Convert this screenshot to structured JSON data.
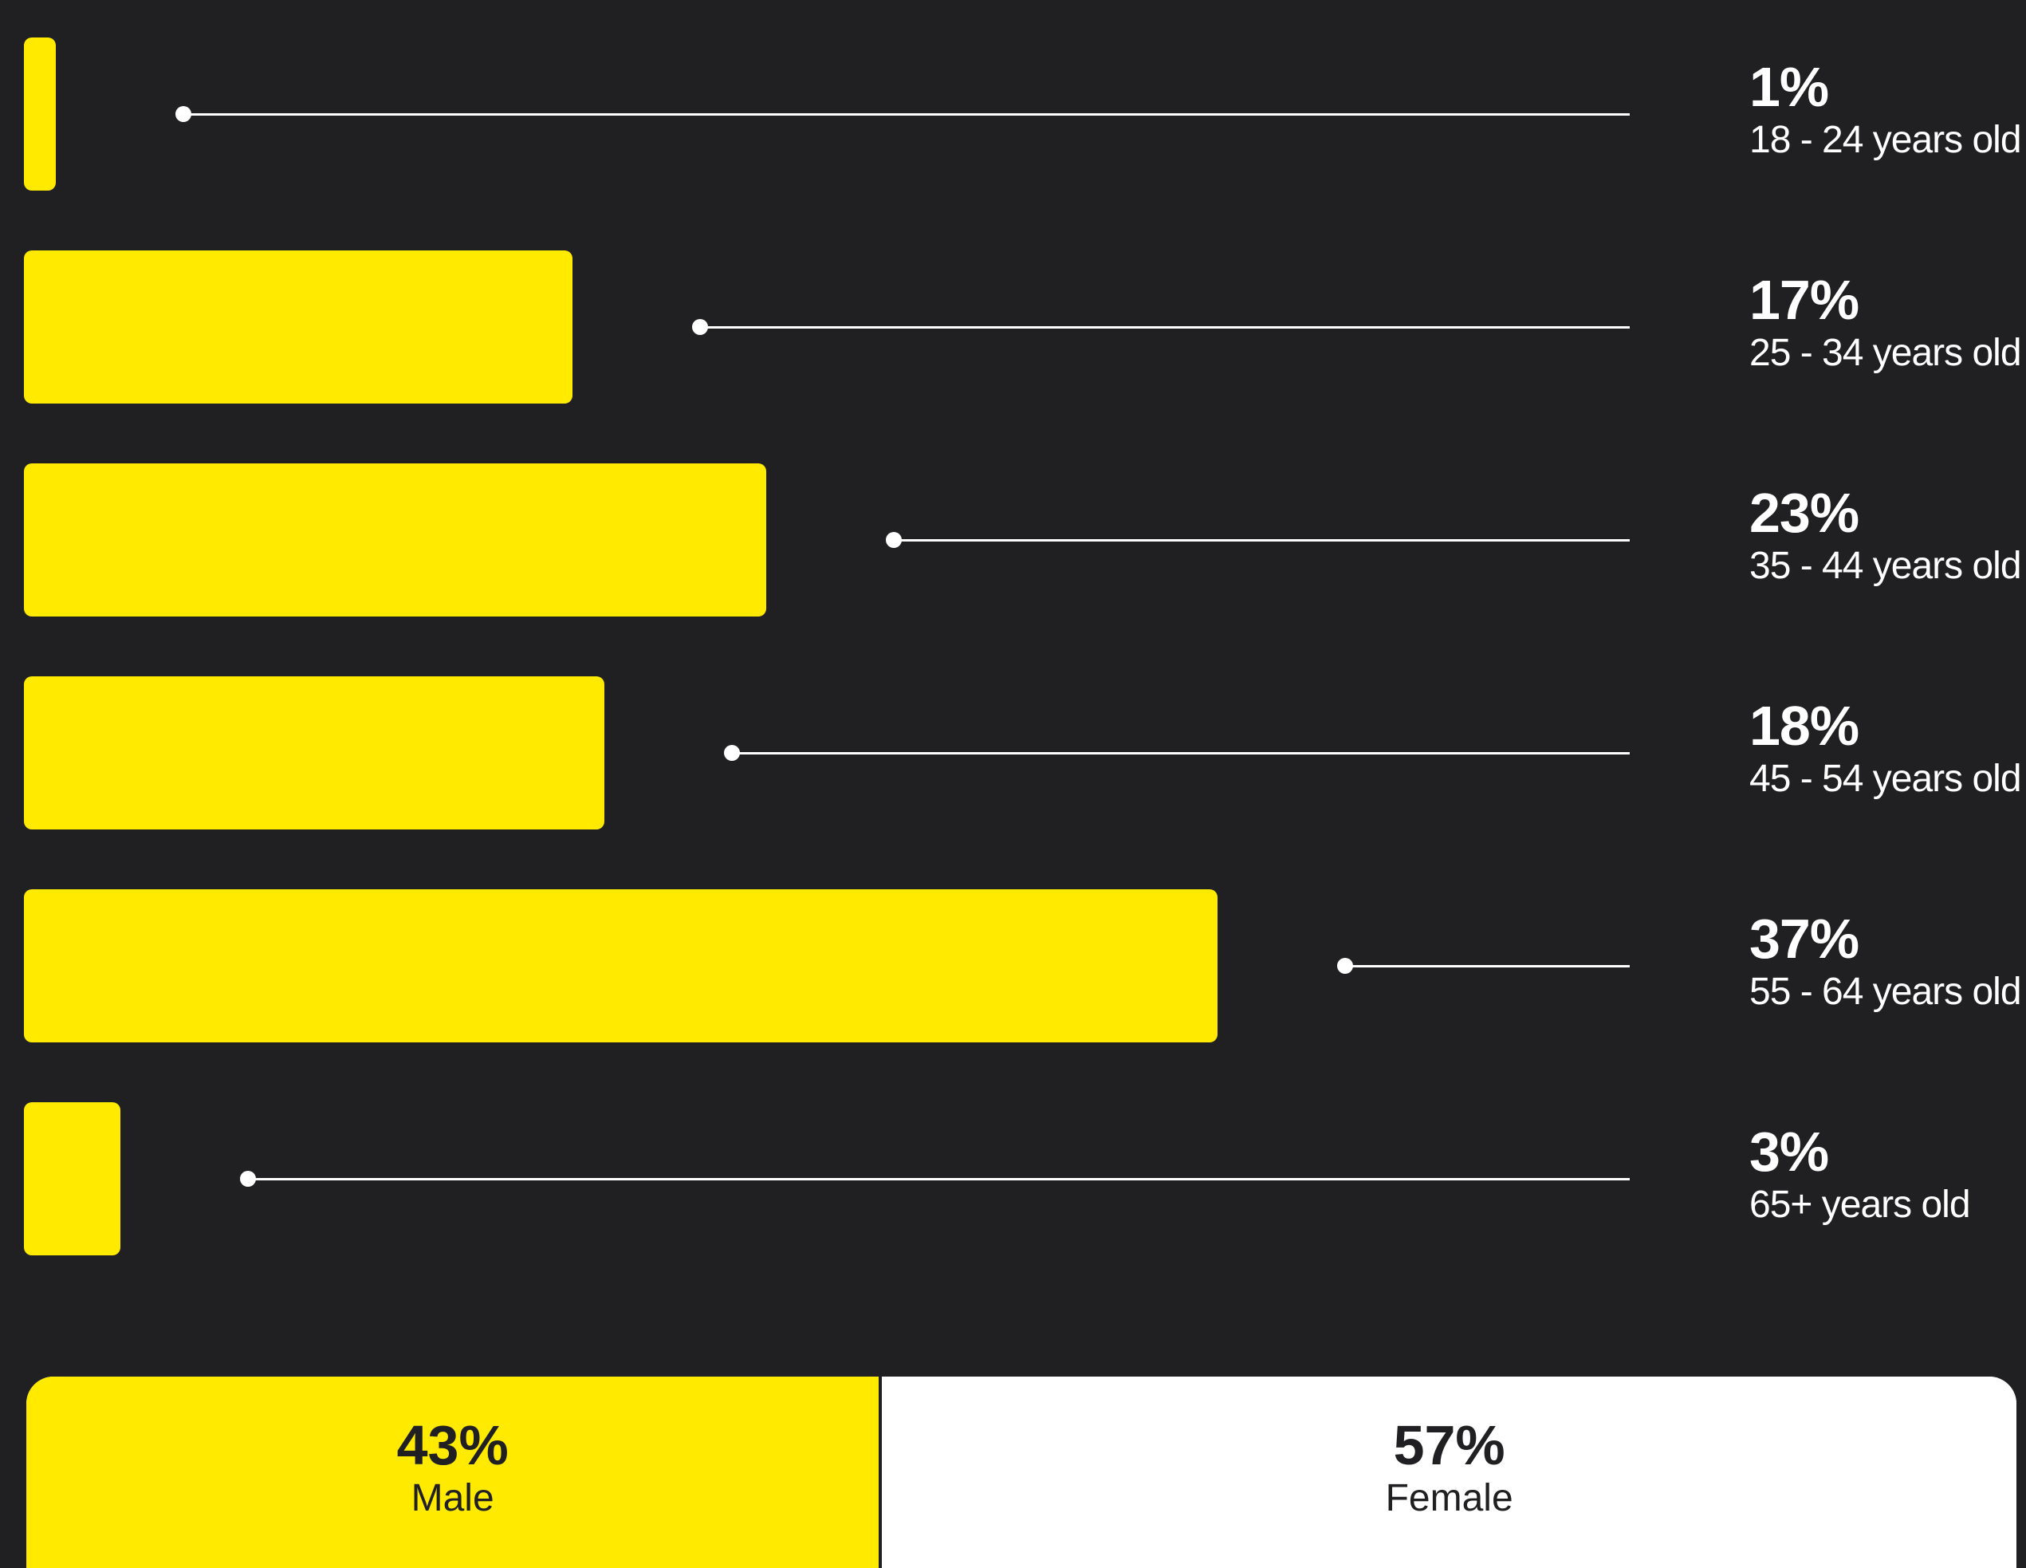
{
  "colors": {
    "background": "#202022",
    "bar": "#ffea00",
    "leader": "#ffffff",
    "text_light": "#ffffff",
    "text_dark": "#202022",
    "female_segment": "#ffffff"
  },
  "chart_data": [
    {
      "type": "bar",
      "orientation": "horizontal",
      "unit": "%",
      "xlim": [
        0,
        37
      ],
      "categories": [
        "18 - 24 years old",
        "25 - 34 years old",
        "35 - 44 years old",
        "45 - 54 years old",
        "55 - 64 years old",
        "65+ years old"
      ],
      "values": [
        1,
        17,
        23,
        18,
        37,
        3
      ],
      "value_labels": [
        "1%",
        "17%",
        "23%",
        "18%",
        "37%",
        "3%"
      ],
      "grid": false,
      "legend": "none"
    },
    {
      "type": "bar",
      "orientation": "horizontal",
      "stacked": true,
      "unit": "%",
      "categories": [
        "Male",
        "Female"
      ],
      "values": [
        43,
        57
      ],
      "value_labels": [
        "43%",
        "57%"
      ],
      "colors": [
        "#ffea00",
        "#ffffff"
      ]
    }
  ]
}
